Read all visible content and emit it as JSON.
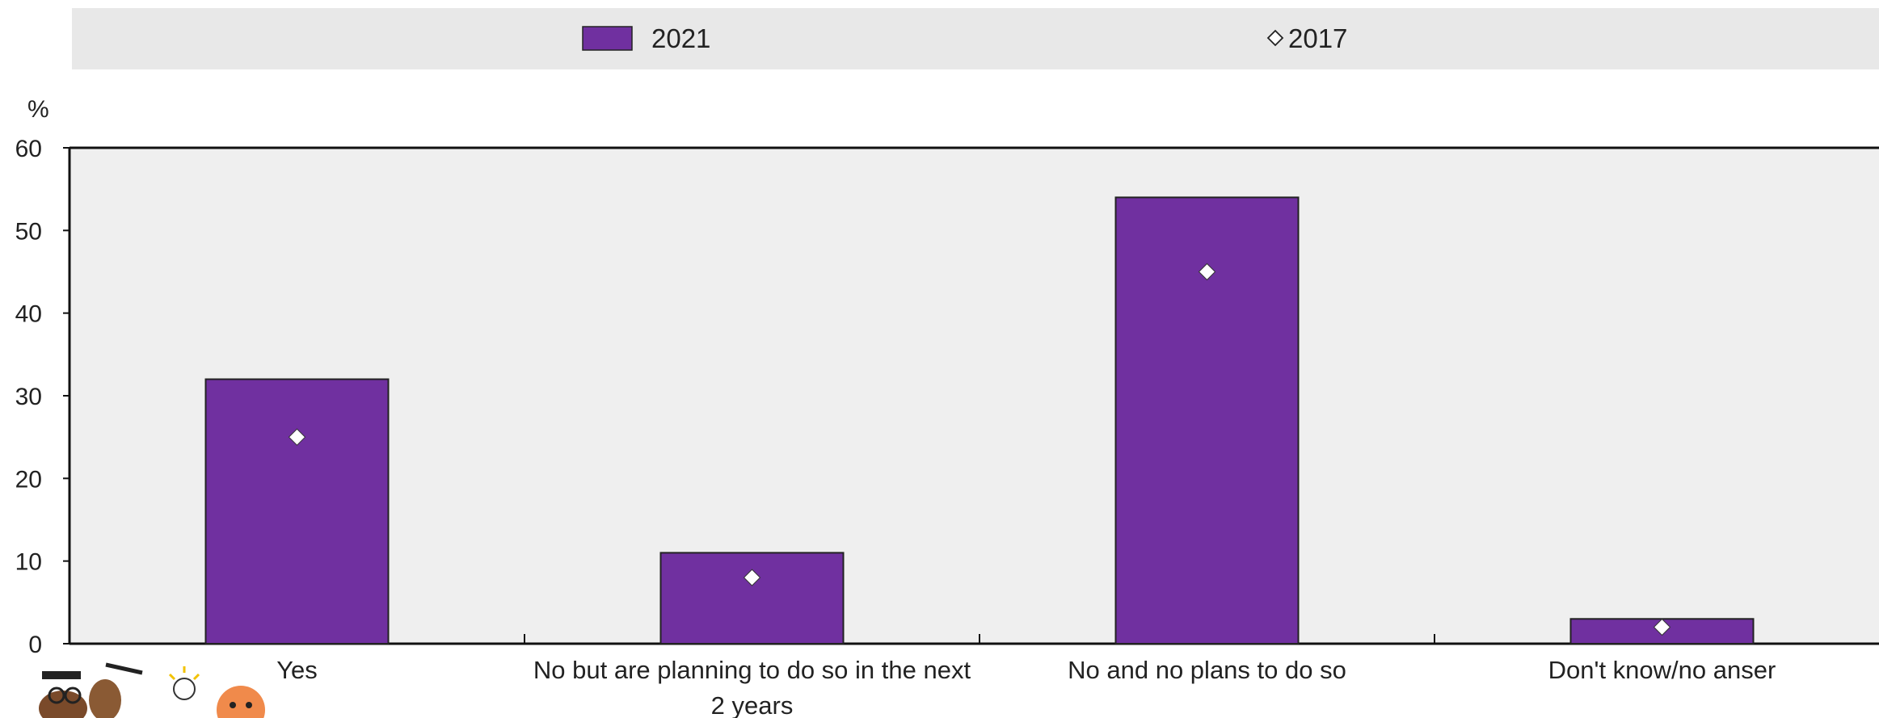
{
  "chart_data": {
    "type": "bar",
    "categories": [
      "Yes",
      "No but are planning to do so in the next 2 years",
      "No and no plans to do so",
      "Don't know/no anser"
    ],
    "category_lines": [
      [
        "Yes"
      ],
      [
        "No but are planning to do so in the next",
        "2 years"
      ],
      [
        "No and no plans to do so"
      ],
      [
        "Don't know/no anser"
      ]
    ],
    "series": [
      {
        "name": "2021",
        "kind": "bar",
        "values": [
          32,
          11,
          54,
          3
        ],
        "color": "#7030a0"
      },
      {
        "name": "2017",
        "kind": "marker",
        "marker": "diamond",
        "values": [
          25,
          8,
          45,
          2
        ],
        "color": "#ffffff"
      }
    ],
    "ylabel": "%",
    "ylim": [
      0,
      60
    ],
    "yticks": [
      0,
      10,
      20,
      30,
      40,
      50,
      60
    ],
    "legend_position": "top",
    "plot_background": "#efefef",
    "legend_background": "#e8e8e8",
    "grid": false
  },
  "decoration": {
    "icons": [
      "people-illustration-icon",
      "lightbulb-icon"
    ]
  }
}
